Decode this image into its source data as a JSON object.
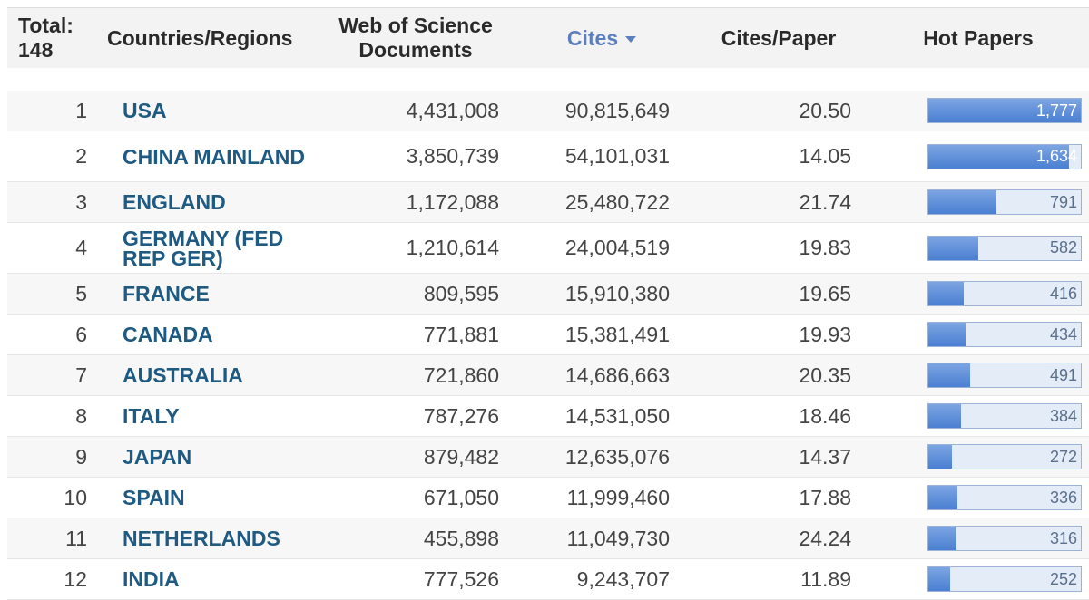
{
  "header": {
    "total_label": "Total:",
    "total_count": "148",
    "countries": "Countries/Regions",
    "wos_line1": "Web of Science",
    "wos_line2": "Documents",
    "cites": "Cites",
    "cites_per_paper": "Cites/Paper",
    "hot_papers": "Hot Papers"
  },
  "colors": {
    "link": "#1e5a82",
    "sorted_header": "#5b7fbf",
    "bar": "#4a7fd2",
    "bar_track": "#e4ecf7"
  },
  "hot_papers_max": 1777,
  "rows": [
    {
      "rank": "1",
      "country": "USA",
      "documents": "4,431,008",
      "cites": "90,815,649",
      "cites_per_paper": "20.50",
      "hot_papers": "1,777",
      "hot_value": 1777
    },
    {
      "rank": "2",
      "country": "CHINA MAINLAND",
      "documents": "3,850,739",
      "cites": "54,101,031",
      "cites_per_paper": "14.05",
      "hot_papers": "1,634",
      "hot_value": 1634
    },
    {
      "rank": "3",
      "country": "ENGLAND",
      "documents": "1,172,088",
      "cites": "25,480,722",
      "cites_per_paper": "21.74",
      "hot_papers": "791",
      "hot_value": 791
    },
    {
      "rank": "4",
      "country": "GERMANY (FED REP GER)",
      "documents": "1,210,614",
      "cites": "24,004,519",
      "cites_per_paper": "19.83",
      "hot_papers": "582",
      "hot_value": 582
    },
    {
      "rank": "5",
      "country": "FRANCE",
      "documents": "809,595",
      "cites": "15,910,380",
      "cites_per_paper": "19.65",
      "hot_papers": "416",
      "hot_value": 416
    },
    {
      "rank": "6",
      "country": "CANADA",
      "documents": "771,881",
      "cites": "15,381,491",
      "cites_per_paper": "19.93",
      "hot_papers": "434",
      "hot_value": 434
    },
    {
      "rank": "7",
      "country": "AUSTRALIA",
      "documents": "721,860",
      "cites": "14,686,663",
      "cites_per_paper": "20.35",
      "hot_papers": "491",
      "hot_value": 491
    },
    {
      "rank": "8",
      "country": "ITALY",
      "documents": "787,276",
      "cites": "14,531,050",
      "cites_per_paper": "18.46",
      "hot_papers": "384",
      "hot_value": 384
    },
    {
      "rank": "9",
      "country": "JAPAN",
      "documents": "879,482",
      "cites": "12,635,076",
      "cites_per_paper": "14.37",
      "hot_papers": "272",
      "hot_value": 272
    },
    {
      "rank": "10",
      "country": "SPAIN",
      "documents": "671,050",
      "cites": "11,999,460",
      "cites_per_paper": "17.88",
      "hot_papers": "336",
      "hot_value": 336
    },
    {
      "rank": "11",
      "country": "NETHERLANDS",
      "documents": "455,898",
      "cites": "11,049,730",
      "cites_per_paper": "24.24",
      "hot_papers": "316",
      "hot_value": 316
    },
    {
      "rank": "12",
      "country": "INDIA",
      "documents": "777,526",
      "cites": "9,243,707",
      "cites_per_paper": "11.89",
      "hot_papers": "252",
      "hot_value": 252
    }
  ]
}
